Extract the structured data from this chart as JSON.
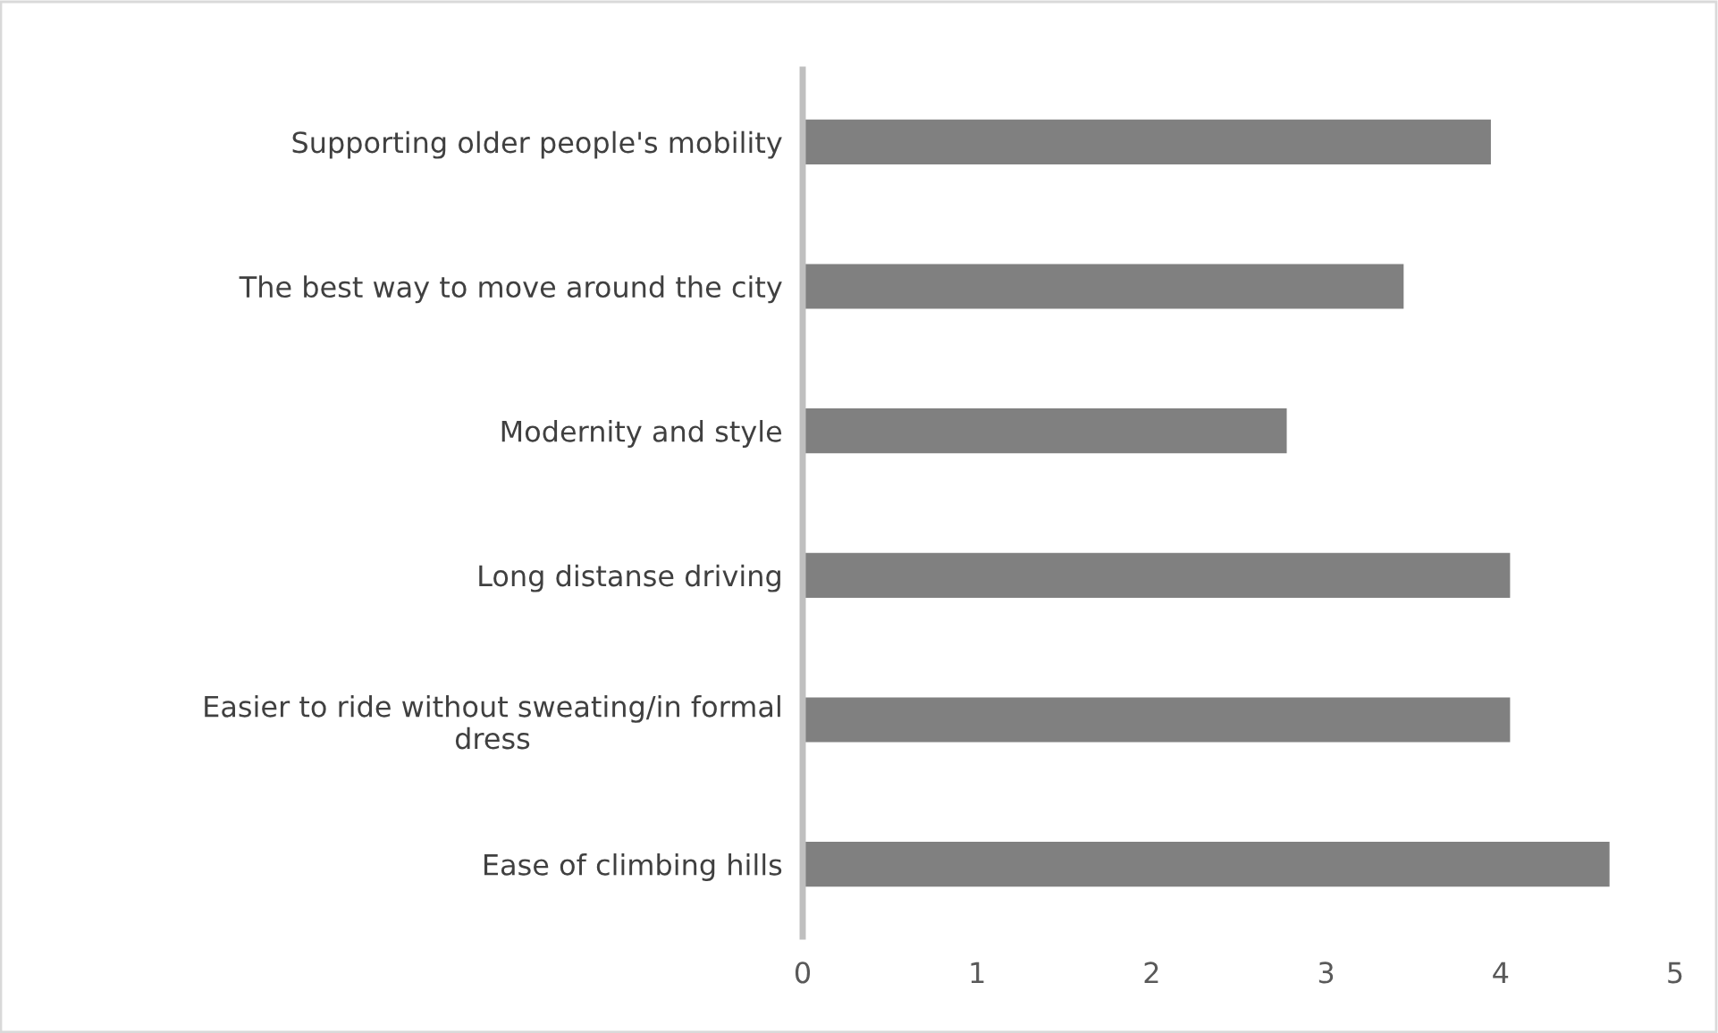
{
  "chart_data": {
    "type": "bar",
    "orientation": "horizontal",
    "categories": [
      "Supporting older people's mobility",
      "The best way to move around the city",
      "Modernity and style",
      "Long distanse driving",
      "Easier to ride without sweating/in formal dress",
      "Ease of climbing hills"
    ],
    "values": [
      3.94,
      3.44,
      2.77,
      4.05,
      4.05,
      4.62
    ],
    "color": "#808080",
    "xlim": [
      0,
      5
    ],
    "xticks": [
      0,
      1,
      2,
      3,
      4,
      5
    ],
    "grid": false
  }
}
